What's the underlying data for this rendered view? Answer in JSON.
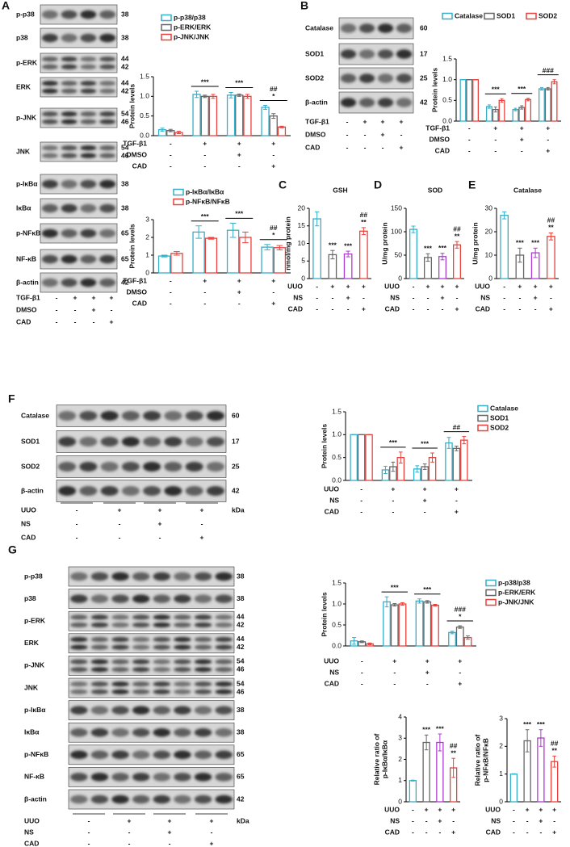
{
  "chart_data": [
    {
      "type": "bar",
      "ylabel": "Protein levels",
      "series": [
        {
          "name": "p-p38/p38",
          "color": "#35aec8",
          "values": [
            0.15,
            1.05,
            1.03,
            0.72
          ],
          "errors": [
            0.04,
            0.08,
            0.07,
            0.05
          ]
        },
        {
          "name": "p-ERK/ERK",
          "color": "#666666",
          "values": [
            0.13,
            1.0,
            1.03,
            0.5
          ],
          "errors": [
            0.03,
            0.03,
            0.03,
            0.06
          ]
        },
        {
          "name": "p-JNK/JNK",
          "color": "#e8413c",
          "values": [
            0.08,
            1.0,
            1.0,
            0.22
          ],
          "errors": [
            0.03,
            0.05,
            0.05,
            0.02
          ]
        }
      ],
      "ylim": [
        0,
        1.5
      ],
      "yticks": [
        {
          "value": 0,
          "label": "0.0"
        },
        {
          "value": 0.5,
          "label": "0.5"
        },
        {
          "value": 1,
          "label": "1.0"
        },
        {
          "value": 1.5,
          "label": "1.5"
        }
      ],
      "annotations": [
        null,
        [
          "***"
        ],
        [
          "***"
        ],
        [
          "##",
          "*"
        ]
      ],
      "conditions": [
        {
          "name": "TGF-β1",
          "marks": [
            "-",
            "+",
            "+",
            "+"
          ]
        },
        {
          "name": "DMSO",
          "marks": [
            "-",
            "-",
            "+",
            "-"
          ]
        },
        {
          "name": "CAD",
          "marks": [
            "-",
            "-",
            "-",
            "+"
          ]
        }
      ]
    },
    {
      "type": "bar",
      "ylabel": "Protein levels",
      "series": [
        {
          "name": "p-IκBα/IκBα",
          "color": "#35aec8",
          "values": [
            0.95,
            2.3,
            2.4,
            1.45
          ],
          "errors": [
            0.05,
            0.35,
            0.4,
            0.15
          ]
        },
        {
          "name": "p-NFκB/NFκB",
          "color": "#e8413c",
          "values": [
            1.1,
            1.95,
            2.0,
            1.42
          ],
          "errors": [
            0.1,
            0.05,
            0.3,
            0.12
          ]
        }
      ],
      "ylim": [
        0,
        3
      ],
      "yticks": [
        0,
        1,
        2,
        3
      ],
      "annotations": [
        null,
        [
          "***"
        ],
        [
          "***"
        ],
        [
          "##",
          "*"
        ]
      ],
      "conditions": [
        {
          "name": "TGF-β1",
          "marks": [
            "-",
            "+",
            "+",
            "+"
          ]
        },
        {
          "name": "DMSO",
          "marks": [
            "-",
            "-",
            "+",
            "-"
          ]
        },
        {
          "name": "CAD",
          "marks": [
            "-",
            "-",
            "-",
            "+"
          ]
        }
      ]
    },
    {
      "type": "bar",
      "ylabel": "Protein levels",
      "series": [
        {
          "name": "Catalase",
          "color": "#35aec8",
          "values": [
            1,
            0.35,
            0.28,
            0.78
          ],
          "errors": [
            0,
            0.04,
            0.03,
            0.03
          ]
        },
        {
          "name": "SOD1",
          "color": "#666666",
          "values": [
            1,
            0.28,
            0.33,
            0.78
          ],
          "errors": [
            0,
            0.06,
            0.04,
            0.03
          ]
        },
        {
          "name": "SOD2",
          "color": "#e8413c",
          "values": [
            1,
            0.5,
            0.52,
            0.95
          ],
          "errors": [
            0,
            0.04,
            0.03,
            0.05
          ]
        }
      ],
      "ylim": [
        0,
        1.5
      ],
      "yticks": [
        {
          "value": 0,
          "label": "0.0"
        },
        {
          "value": 0.5,
          "label": "0.5"
        },
        {
          "value": 1,
          "label": "1.0"
        },
        {
          "value": 1.5,
          "label": "1.5"
        }
      ],
      "annotations": [
        null,
        [
          "***"
        ],
        [
          "***"
        ],
        [
          "###"
        ]
      ],
      "conditions": [
        {
          "name": "TGF-β1",
          "marks": [
            "-",
            "+",
            "+",
            "+"
          ]
        },
        {
          "name": "DMSO",
          "marks": [
            "-",
            "-",
            "+",
            "-"
          ]
        },
        {
          "name": "CAD",
          "marks": [
            "-",
            "-",
            "-",
            "+"
          ]
        }
      ]
    },
    {
      "type": "bar",
      "panel": "C",
      "title": "GSH",
      "ylabel": "nmol/mg protein",
      "values": [
        17,
        6.8,
        7,
        13.5
      ],
      "errors": [
        2,
        1.2,
        0.8,
        1
      ],
      "colors": [
        "#35aec8",
        "#666666",
        "#b03bd0",
        "#e8413c"
      ],
      "ylim": [
        0,
        20
      ],
      "yticks": [
        0,
        5,
        10,
        15,
        20
      ],
      "annotations": [
        null,
        [
          "***"
        ],
        [
          "***"
        ],
        [
          "##",
          "**"
        ]
      ],
      "conditions": [
        {
          "name": "UUO",
          "marks": [
            "-",
            "+",
            "+",
            "+"
          ]
        },
        {
          "name": "NS",
          "marks": [
            "-",
            "-",
            "+",
            "-"
          ]
        },
        {
          "name": "CAD",
          "marks": [
            "-",
            "-",
            "-",
            "+"
          ]
        }
      ]
    },
    {
      "type": "bar",
      "panel": "D",
      "title": "SOD",
      "ylabel": "U/mg protein",
      "values": [
        105,
        45,
        47,
        72
      ],
      "errors": [
        7,
        8,
        7,
        7
      ],
      "colors": [
        "#35aec8",
        "#666666",
        "#b03bd0",
        "#e8413c"
      ],
      "ylim": [
        0,
        150
      ],
      "yticks": [
        0,
        50,
        100,
        150
      ],
      "annotations": [
        null,
        [
          "***"
        ],
        [
          "***"
        ],
        [
          "##",
          "**"
        ]
      ],
      "conditions": [
        {
          "name": "UUO",
          "marks": [
            "-",
            "+",
            "+",
            "+"
          ]
        },
        {
          "name": "NS",
          "marks": [
            "-",
            "-",
            "+",
            "-"
          ]
        },
        {
          "name": "CAD",
          "marks": [
            "-",
            "-",
            "-",
            "+"
          ]
        }
      ]
    },
    {
      "type": "bar",
      "panel": "E",
      "title": "Catalase",
      "ylabel": "U/mg protein",
      "values": [
        27,
        10,
        11,
        18
      ],
      "errors": [
        1.5,
        3,
        2,
        1.5
      ],
      "colors": [
        "#35aec8",
        "#666666",
        "#b03bd0",
        "#e8413c"
      ],
      "ylim": [
        0,
        30
      ],
      "yticks": [
        0,
        10,
        20,
        30
      ],
      "annotations": [
        null,
        [
          "***"
        ],
        [
          "***"
        ],
        [
          "##",
          "**"
        ]
      ],
      "conditions": [
        {
          "name": "UUO",
          "marks": [
            "-",
            "+",
            "+",
            "+"
          ]
        },
        {
          "name": "NS",
          "marks": [
            "-",
            "-",
            "+",
            "-"
          ]
        },
        {
          "name": "CAD",
          "marks": [
            "-",
            "-",
            "-",
            "+"
          ]
        }
      ]
    },
    {
      "type": "bar",
      "ylabel": "Protein levels",
      "series": [
        {
          "name": "Catalase",
          "color": "#35aec8",
          "values": [
            1,
            0.23,
            0.25,
            0.82
          ],
          "errors": [
            0,
            0.08,
            0.07,
            0.12
          ]
        },
        {
          "name": "SOD1",
          "color": "#666666",
          "values": [
            1,
            0.3,
            0.3,
            0.7
          ],
          "errors": [
            0,
            0.1,
            0.06,
            0.05
          ]
        },
        {
          "name": "SOD2",
          "color": "#e8413c",
          "values": [
            1,
            0.5,
            0.5,
            0.88
          ],
          "errors": [
            0,
            0.12,
            0.1,
            0.08
          ]
        }
      ],
      "ylim": [
        0,
        1.5
      ],
      "yticks": [
        {
          "value": 0,
          "label": "0.0"
        },
        {
          "value": 0.5,
          "label": "0.5"
        },
        {
          "value": 1,
          "label": "1.0"
        },
        {
          "value": 1.5,
          "label": "1.5"
        }
      ],
      "annotations": [
        null,
        [
          "***"
        ],
        [
          "***"
        ],
        [
          "##"
        ]
      ],
      "conditions": [
        {
          "name": "UUO",
          "marks": [
            "-",
            "+",
            "+",
            "+"
          ]
        },
        {
          "name": "NS",
          "marks": [
            "-",
            "-",
            "+",
            "-"
          ]
        },
        {
          "name": "CAD",
          "marks": [
            "-",
            "-",
            "-",
            "+"
          ]
        }
      ]
    },
    {
      "type": "bar",
      "ylabel": "Protein levels",
      "series": [
        {
          "name": "p-p38/p38",
          "color": "#35aec8",
          "values": [
            0.12,
            1.05,
            1.07,
            0.32
          ],
          "errors": [
            0.08,
            0.12,
            0.05,
            0.03
          ]
        },
        {
          "name": "p-ERK/ERK",
          "color": "#666666",
          "values": [
            0.1,
            0.98,
            1.05,
            0.45
          ],
          "errors": [
            0.02,
            0.03,
            0.03,
            0.03
          ]
        },
        {
          "name": "p-JNK/JNK",
          "color": "#e8413c",
          "values": [
            0.05,
            1.0,
            0.97,
            0.2
          ],
          "errors": [
            0.02,
            0.03,
            0.02,
            0.04
          ]
        }
      ],
      "ylim": [
        0,
        1.5
      ],
      "yticks": [
        {
          "value": 0,
          "label": "0.0"
        },
        {
          "value": 0.5,
          "label": "0.5"
        },
        {
          "value": 1,
          "label": "1.0"
        },
        {
          "value": 1.5,
          "label": "1.5"
        }
      ],
      "annotations": [
        null,
        [
          "***"
        ],
        [
          "***"
        ],
        [
          "###",
          "*"
        ]
      ],
      "conditions": [
        {
          "name": "UUO",
          "marks": [
            "-",
            "+",
            "+",
            "+"
          ]
        },
        {
          "name": "NS",
          "marks": [
            "-",
            "-",
            "+",
            "-"
          ]
        },
        {
          "name": "CAD",
          "marks": [
            "-",
            "-",
            "-",
            "+"
          ]
        }
      ]
    },
    {
      "type": "bar",
      "ylabel": [
        "Relative ratio of",
        "p-IκBα/IκBα"
      ],
      "values": [
        1,
        2.8,
        2.8,
        1.6
      ],
      "errors": [
        0.02,
        0.35,
        0.4,
        0.45
      ],
      "colors": [
        "#35aec8",
        "#666666",
        "#b03bd0",
        "#e8413c"
      ],
      "ylim": [
        0,
        4
      ],
      "yticks": [
        0,
        1,
        2,
        3,
        4
      ],
      "annotations": [
        null,
        [
          "***"
        ],
        [
          "***"
        ],
        [
          "##",
          "**"
        ]
      ],
      "conditions": [
        {
          "name": "UUO",
          "marks": [
            "-",
            "+",
            "+",
            "+"
          ]
        },
        {
          "name": "NS",
          "marks": [
            "-",
            "-",
            "+",
            "-"
          ]
        },
        {
          "name": "CAD",
          "marks": [
            "-",
            "-",
            "-",
            "+"
          ]
        }
      ]
    },
    {
      "type": "bar",
      "ylabel": [
        "Relative ratio of",
        "p-NFκB/NFκB"
      ],
      "values": [
        1,
        2.2,
        2.3,
        1.45
      ],
      "errors": [
        0.01,
        0.4,
        0.3,
        0.2
      ],
      "colors": [
        "#35aec8",
        "#666666",
        "#b03bd0",
        "#e8413c"
      ],
      "ylim": [
        0,
        3
      ],
      "yticks": [
        0,
        1,
        2,
        3
      ],
      "annotations": [
        null,
        [
          "***"
        ],
        [
          "***"
        ],
        [
          "##",
          "**"
        ]
      ],
      "conditions": [
        {
          "name": "UUO",
          "marks": [
            "-",
            "+",
            "+",
            "+"
          ]
        },
        {
          "name": "NS",
          "marks": [
            "-",
            "-",
            "+",
            "-"
          ]
        },
        {
          "name": "CAD",
          "marks": [
            "-",
            "-",
            "-",
            "+"
          ]
        }
      ]
    }
  ],
  "blots": [
    {
      "panel": "A",
      "rows": [
        {
          "label": "p-p38",
          "kda": [
            38
          ]
        },
        {
          "label": "p38",
          "kda": [
            38
          ]
        },
        {
          "label": "p-ERK",
          "kda": [
            44,
            42
          ]
        },
        {
          "label": "ERK",
          "kda": [
            44,
            42
          ]
        },
        {
          "label": "p-JNK",
          "kda": [
            54,
            46
          ]
        },
        {
          "label": "JNK",
          "kda": [
            54,
            46
          ]
        },
        {
          "label": "p-IκBα",
          "kda": [
            38
          ]
        },
        {
          "label": "IκBα",
          "kda": [
            38
          ]
        },
        {
          "label": "p-NFκB",
          "kda": [
            65
          ]
        },
        {
          "label": "NF-κB",
          "kda": [
            65
          ]
        },
        {
          "label": "β-actin",
          "kda": [
            42
          ]
        }
      ],
      "conditions": [
        {
          "name": "TGF-β1",
          "marks": [
            "-",
            "+",
            "+",
            "+"
          ]
        },
        {
          "name": "DMSO",
          "marks": [
            "-",
            "-",
            "+",
            "-"
          ]
        },
        {
          "name": "CAD",
          "marks": [
            "-",
            "-",
            "-",
            "+"
          ]
        }
      ]
    },
    {
      "panel": "B",
      "rows": [
        {
          "label": "Catalase",
          "kda": [
            60
          ]
        },
        {
          "label": "SOD1",
          "kda": [
            17
          ]
        },
        {
          "label": "SOD2",
          "kda": [
            25
          ]
        },
        {
          "label": "β-actin",
          "kda": [
            42
          ]
        }
      ],
      "conditions": [
        {
          "name": "TGF-β1",
          "marks": [
            "-",
            "+",
            "+",
            "+"
          ]
        },
        {
          "name": "DMSO",
          "marks": [
            "-",
            "-",
            "+",
            "-"
          ]
        },
        {
          "name": "CAD",
          "marks": [
            "-",
            "-",
            "-",
            "+"
          ]
        }
      ]
    },
    {
      "panel": "F",
      "unit": "kDa",
      "rows": [
        {
          "label": "Catalase",
          "kda": [
            60
          ]
        },
        {
          "label": "SOD1",
          "kda": [
            17
          ]
        },
        {
          "label": "SOD2",
          "kda": [
            25
          ]
        },
        {
          "label": "β-actin",
          "kda": [
            42
          ]
        }
      ],
      "conditions": [
        {
          "name": "UUO",
          "marks": [
            "-",
            "+",
            "+",
            "+"
          ]
        },
        {
          "name": "NS",
          "marks": [
            "-",
            "-",
            "+",
            "-"
          ]
        },
        {
          "name": "CAD",
          "marks": [
            "-",
            "-",
            "-",
            "+"
          ]
        }
      ]
    },
    {
      "panel": "G",
      "unit": "kDa",
      "rows": [
        {
          "label": "p-p38",
          "kda": [
            38
          ]
        },
        {
          "label": "p38",
          "kda": [
            38
          ]
        },
        {
          "label": "p-ERK",
          "kda": [
            44,
            42
          ]
        },
        {
          "label": "ERK",
          "kda": [
            44,
            42
          ]
        },
        {
          "label": "p-JNK",
          "kda": [
            54,
            46
          ]
        },
        {
          "label": "JNK",
          "kda": [
            54,
            46
          ]
        },
        {
          "label": "p-IκBα",
          "kda": [
            38
          ]
        },
        {
          "label": "IκBα",
          "kda": [
            38
          ]
        },
        {
          "label": "p-NFκB",
          "kda": [
            65
          ]
        },
        {
          "label": "NF-κB",
          "kda": [
            65
          ]
        },
        {
          "label": "β-actin",
          "kda": [
            42
          ]
        }
      ],
      "conditions": [
        {
          "name": "UUO",
          "marks": [
            "-",
            "+",
            "+",
            "+"
          ]
        },
        {
          "name": "NS",
          "marks": [
            "-",
            "-",
            "+",
            "-"
          ]
        },
        {
          "name": "CAD",
          "marks": [
            "-",
            "-",
            "-",
            "+"
          ]
        }
      ]
    }
  ]
}
